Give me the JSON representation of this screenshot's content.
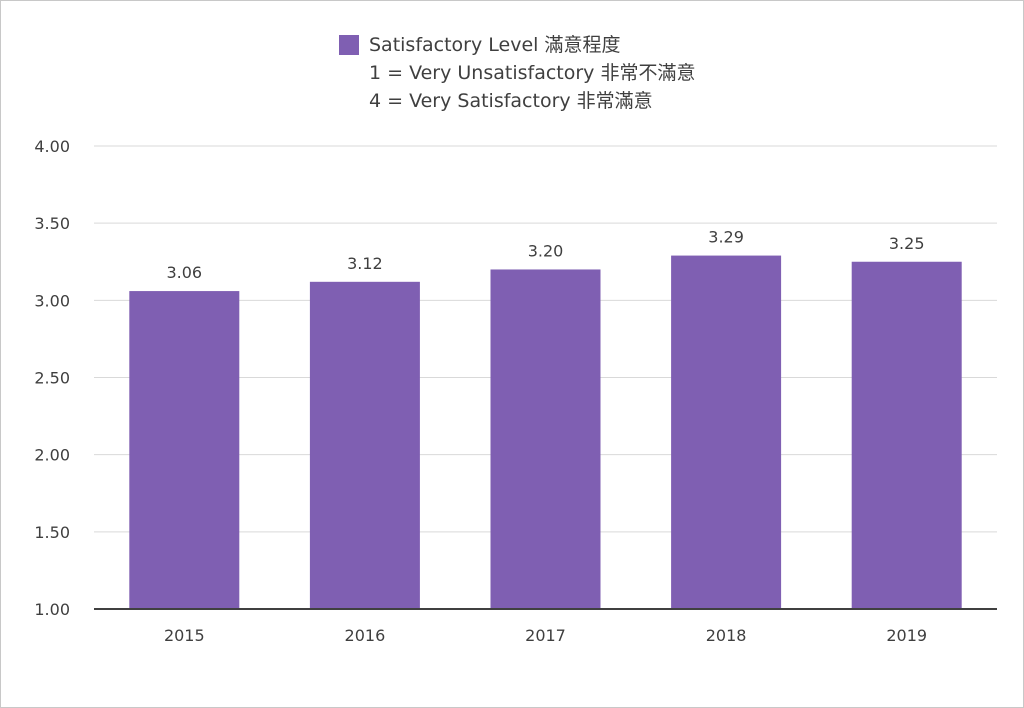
{
  "chart_data": {
    "type": "bar",
    "title": "",
    "xlabel": "",
    "ylabel": "",
    "categories": [
      "2015",
      "2016",
      "2017",
      "2018",
      "2019"
    ],
    "series": [
      {
        "name": "Satisfactory Level 滿意程度",
        "values": [
          3.06,
          3.12,
          3.2,
          3.29,
          3.25
        ],
        "color": "#7f5fb2"
      }
    ],
    "data_labels": [
      "3.06",
      "3.12",
      "3.20",
      "3.29",
      "3.25"
    ],
    "ylim": [
      1.0,
      4.0
    ],
    "yticks": [
      1.0,
      1.5,
      2.0,
      2.5,
      3.0,
      3.5,
      4.0
    ],
    "ytick_labels": [
      "1.00",
      "1.50",
      "2.00",
      "2.50",
      "3.00",
      "3.50",
      "4.00"
    ],
    "grid": true,
    "legend_position": "top-center",
    "legend_notes": [
      "1 = Very Unsatisfactory 非常不滿意",
      "4 = Very Satisfactory 非常滿意"
    ]
  }
}
